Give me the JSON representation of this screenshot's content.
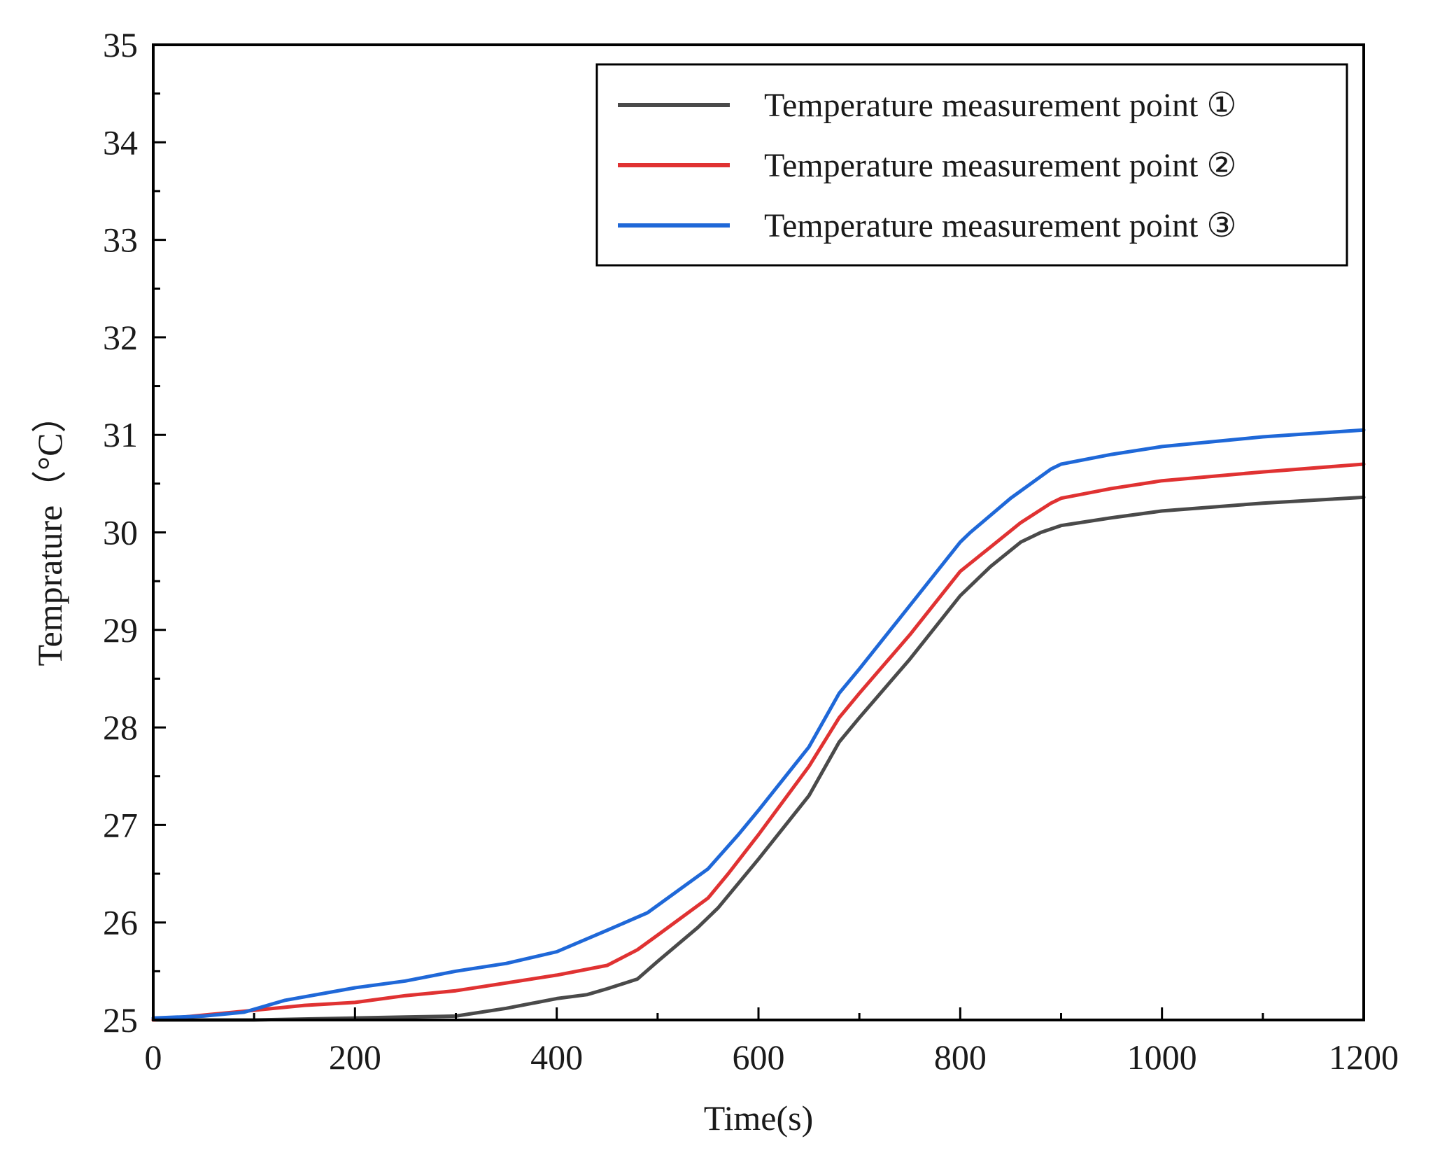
{
  "chart_data": {
    "type": "line",
    "title": "",
    "xlabel": "Time(s)",
    "ylabel": "Temprature（°C）",
    "xlim": [
      0,
      1200
    ],
    "ylim": [
      25,
      35
    ],
    "x_ticks": [
      0,
      200,
      400,
      600,
      800,
      1000,
      1200
    ],
    "y_ticks": [
      25,
      26,
      27,
      28,
      29,
      30,
      31,
      32,
      33,
      34,
      35
    ],
    "grid": false,
    "legend_position": "top-right",
    "series": [
      {
        "name": "Temperature measurement point ①",
        "color": "#4a4a4a",
        "x": [
          0,
          100,
          200,
          250,
          300,
          350,
          400,
          430,
          450,
          480,
          500,
          540,
          560,
          600,
          650,
          680,
          700,
          750,
          800,
          830,
          860,
          880,
          900,
          950,
          1000,
          1100,
          1200
        ],
        "y": [
          25.0,
          25.0,
          25.02,
          25.03,
          25.04,
          25.12,
          25.22,
          25.26,
          25.32,
          25.42,
          25.6,
          25.95,
          26.15,
          26.65,
          27.3,
          27.85,
          28.1,
          28.7,
          29.35,
          29.65,
          29.9,
          30.0,
          30.07,
          30.15,
          30.22,
          30.3,
          30.36
        ]
      },
      {
        "name": "Temperature measurement point ②",
        "color": "#e03232",
        "x": [
          0,
          50,
          100,
          150,
          200,
          250,
          300,
          350,
          400,
          450,
          480,
          500,
          550,
          570,
          600,
          650,
          680,
          700,
          750,
          800,
          830,
          860,
          890,
          900,
          950,
          1000,
          1100,
          1200
        ],
        "y": [
          25.0,
          25.05,
          25.1,
          25.15,
          25.18,
          25.25,
          25.3,
          25.38,
          25.46,
          25.56,
          25.72,
          25.87,
          26.25,
          26.5,
          26.9,
          27.6,
          28.1,
          28.35,
          28.95,
          29.6,
          29.85,
          30.1,
          30.3,
          30.35,
          30.45,
          30.53,
          30.62,
          30.7
        ]
      },
      {
        "name": "Temperature measurement point ③",
        "color": "#1f68d8",
        "x": [
          0,
          50,
          90,
          130,
          200,
          250,
          300,
          350,
          400,
          450,
          490,
          550,
          580,
          600,
          650,
          680,
          700,
          750,
          800,
          810,
          850,
          890,
          900,
          950,
          1000,
          1100,
          1200
        ],
        "y": [
          25.02,
          25.04,
          25.08,
          25.2,
          25.33,
          25.4,
          25.5,
          25.58,
          25.7,
          25.92,
          26.1,
          26.55,
          26.9,
          27.15,
          27.8,
          28.35,
          28.6,
          29.25,
          29.9,
          30.0,
          30.35,
          30.65,
          30.7,
          30.8,
          30.88,
          30.98,
          31.05
        ]
      }
    ]
  }
}
